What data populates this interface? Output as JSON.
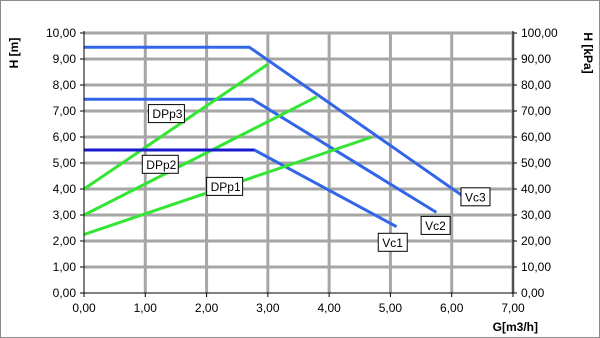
{
  "chart_data": {
    "type": "line",
    "xlabel": "G[m3/h]",
    "ylabel": "H [m]",
    "y2label": "H [kPa]",
    "xlim": [
      0,
      7
    ],
    "ylim": [
      0,
      10
    ],
    "y2lim": [
      0,
      100
    ],
    "grid": true,
    "x_ticks": [
      "0,00",
      "1,00",
      "2,00",
      "3,00",
      "4,00",
      "5,00",
      "6,00",
      "7,00"
    ],
    "y_ticks": [
      "0,00",
      "1,00",
      "2,00",
      "3,00",
      "4,00",
      "5,00",
      "6,00",
      "7,00",
      "8,00",
      "9,00",
      "10,00"
    ],
    "y2_ticks": [
      "0,00",
      "10,00",
      "20,00",
      "30,00",
      "40,00",
      "50,00",
      "60,00",
      "70,00",
      "80,00",
      "90,00",
      "100,00"
    ],
    "series": [
      {
        "name": "Vc1",
        "color": "#3366e6",
        "x": [
          0,
          2.78,
          5.1
        ],
        "y": [
          5.5,
          5.5,
          2.55
        ]
      },
      {
        "name": "Vc2",
        "color": "#3366e6",
        "x": [
          0,
          2.75,
          5.75
        ],
        "y": [
          7.45,
          7.45,
          3.1
        ]
      },
      {
        "name": "Vc3",
        "color": "#3366e6",
        "x": [
          0,
          2.7,
          6.2
        ],
        "y": [
          9.45,
          9.45,
          3.7
        ]
      },
      {
        "name": "DPp1",
        "color": "#33e633",
        "x": [
          0,
          4.7
        ],
        "y": [
          2.25,
          6.0
        ]
      },
      {
        "name": "DPp2",
        "color": "#33e633",
        "x": [
          0,
          3.8
        ],
        "y": [
          3.0,
          7.55
        ]
      },
      {
        "name": "DPp3",
        "color": "#33e633",
        "x": [
          0,
          3.0
        ],
        "y": [
          4.0,
          8.8
        ]
      }
    ],
    "overlay": {
      "color": "#1a1acc",
      "x": [
        0,
        2.78
      ],
      "y": [
        5.5,
        5.5
      ]
    },
    "labels": [
      {
        "text": "DPp3",
        "x": 1.1,
        "y": 6.9
      },
      {
        "text": "DPp2",
        "x": 1.0,
        "y": 4.95
      },
      {
        "text": "DPp1",
        "x": 2.05,
        "y": 4.1
      },
      {
        "text": "Vc1",
        "x": 4.85,
        "y": 1.95
      },
      {
        "text": "Vc2",
        "x": 5.55,
        "y": 2.6
      },
      {
        "text": "Vc3",
        "x": 6.2,
        "y": 3.7
      }
    ]
  }
}
